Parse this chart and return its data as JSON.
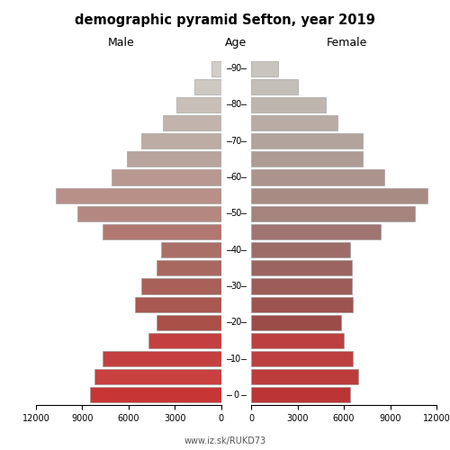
{
  "title": "demographic pyramid Sefton, year 2019",
  "male_label": "Male",
  "female_label": "Female",
  "age_label": "Age",
  "footer": "www.iz.sk/RUKD73",
  "age_groups": [
    90,
    85,
    80,
    75,
    70,
    65,
    60,
    55,
    50,
    45,
    40,
    35,
    30,
    25,
    20,
    15,
    10,
    5,
    0
  ],
  "male_values": [
    650,
    1750,
    2900,
    3800,
    5200,
    6100,
    7100,
    10700,
    9300,
    7700,
    3900,
    4200,
    5200,
    5600,
    4200,
    4700,
    7700,
    8200,
    8500
  ],
  "female_values": [
    1750,
    3000,
    4800,
    5600,
    7200,
    7200,
    8600,
    11400,
    10600,
    8400,
    6400,
    6500,
    6500,
    6600,
    5800,
    6000,
    6600,
    6900,
    6400
  ],
  "xlim": 12000,
  "xticks": [
    0,
    3000,
    6000,
    9000,
    12000
  ],
  "male_xticklabels": [
    "0",
    "3000",
    "6000",
    "9000",
    "12000"
  ],
  "female_xticklabels": [
    "0",
    "3000",
    "6000",
    "9000",
    "12000"
  ],
  "male_xtick_display": [
    "0",
    "3000",
    "6000",
    "9000",
    "12000"
  ],
  "age_tick_positions": [
    0,
    2,
    4,
    6,
    8,
    10,
    12,
    14,
    16,
    18
  ],
  "age_tick_labels": [
    "0",
    "10",
    "20",
    "30",
    "40",
    "50",
    "60",
    "70",
    "80",
    "90"
  ],
  "bg_color": "#ffffff",
  "bar_edge_color": "#999999",
  "bar_linewidth": 0.4,
  "bar_height": 0.85,
  "male_bar_colors": [
    "#d2cdc8",
    "#cec8c2",
    "#c8c0b8",
    "#c2b4ac",
    "#bcaca4",
    "#b8a49c",
    "#b89890",
    "#b89088",
    "#b48880",
    "#b07870",
    "#aa7068",
    "#a86860",
    "#a86058",
    "#a85850",
    "#a85048",
    "#c44040",
    "#c44040",
    "#c84040",
    "#c83535"
  ],
  "female_bar_colors": [
    "#c8c4be",
    "#c4beb8",
    "#beb6ae",
    "#b8aca4",
    "#b2a49c",
    "#ae9c94",
    "#ac948c",
    "#a88c84",
    "#a4847c",
    "#a07470",
    "#9e6c68",
    "#9c6460",
    "#9c5c58",
    "#9c5450",
    "#9c4c48",
    "#bc4040",
    "#bc4040",
    "#bc3c3c",
    "#bc3535"
  ]
}
